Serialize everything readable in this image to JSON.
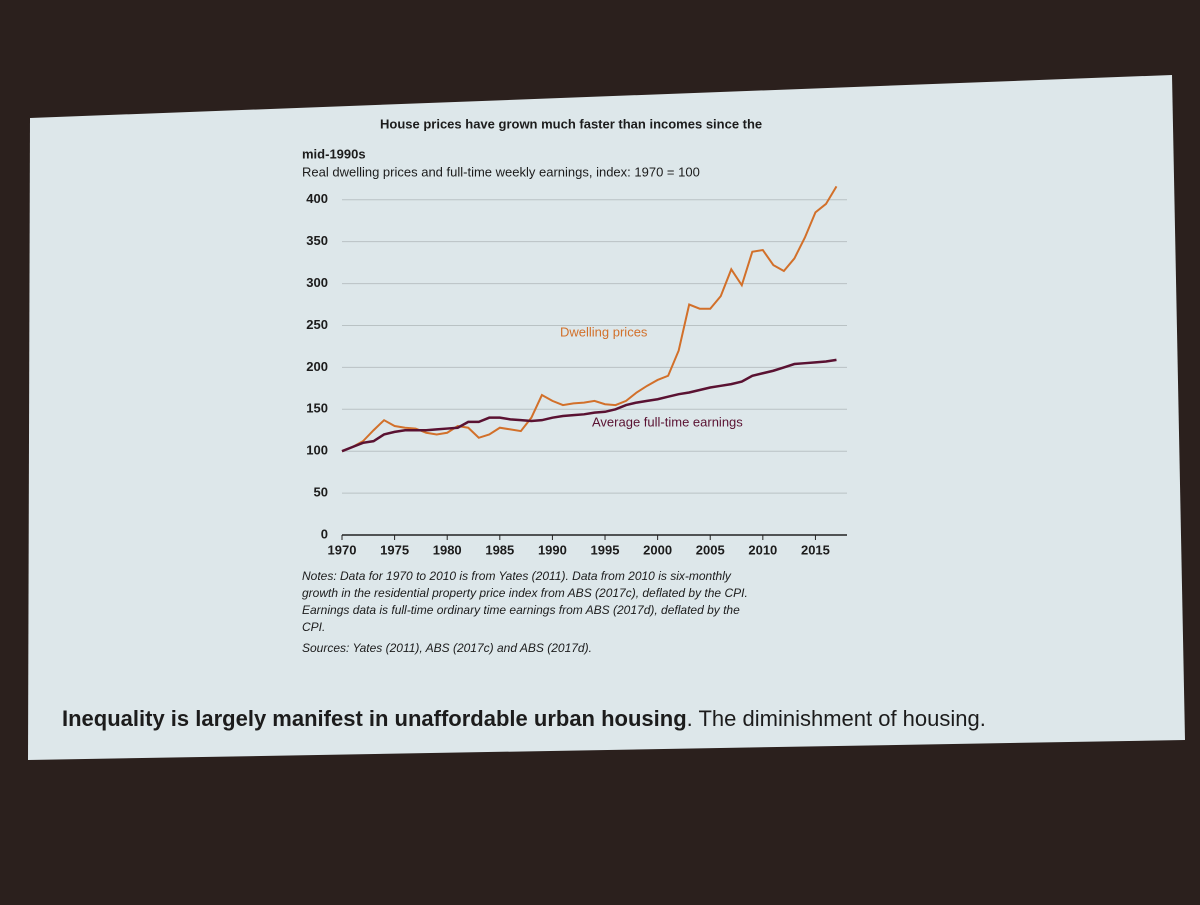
{
  "chart_data": {
    "type": "line",
    "title": [
      "House prices have grown much faster than incomes since the",
      "mid-1990s"
    ],
    "subtitle": "Real dwelling prices and full-time weekly earnings, index: 1970 = 100",
    "x": [
      1970,
      1971,
      1972,
      1973,
      1974,
      1975,
      1976,
      1977,
      1978,
      1979,
      1980,
      1981,
      1982,
      1983,
      1984,
      1985,
      1986,
      1987,
      1988,
      1989,
      1990,
      1991,
      1992,
      1993,
      1994,
      1995,
      1996,
      1997,
      1998,
      1999,
      2000,
      2001,
      2002,
      2003,
      2004,
      2005,
      2006,
      2007,
      2008,
      2009,
      2010,
      2011,
      2012,
      2013,
      2014,
      2015,
      2016,
      2017
    ],
    "series": [
      {
        "name": "Dwelling prices",
        "color": "#d2702a",
        "values": [
          100,
          105,
          112,
          125,
          137,
          130,
          128,
          127,
          122,
          120,
          122,
          130,
          128,
          116,
          120,
          128,
          126,
          124,
          140,
          167,
          160,
          155,
          157,
          158,
          160,
          156,
          155,
          160,
          170,
          178,
          185,
          190,
          220,
          275,
          270,
          270,
          285,
          317,
          298,
          338,
          340,
          322,
          315,
          330,
          355,
          385,
          395,
          416
        ]
      },
      {
        "name": "Average full-time earnings",
        "color": "#5a1232",
        "values": [
          100,
          105,
          110,
          112,
          120,
          123,
          125,
          125,
          125,
          126,
          127,
          128,
          135,
          135,
          140,
          140,
          138,
          137,
          136,
          137,
          140,
          142,
          143,
          144,
          146,
          147,
          150,
          155,
          158,
          160,
          162,
          165,
          168,
          170,
          173,
          176,
          178,
          180,
          183,
          190,
          193,
          196,
          200,
          204,
          205,
          206,
          207,
          209
        ]
      }
    ],
    "xlim": [
      1970,
      2018
    ],
    "xticks": [
      1970,
      1975,
      1980,
      1985,
      1990,
      1995,
      2000,
      2005,
      2010,
      2015
    ],
    "ylim": [
      0,
      420
    ],
    "yticks": [
      0,
      50,
      100,
      150,
      200,
      250,
      300,
      350,
      400
    ],
    "grid": true,
    "notes": [
      "Notes: Data for 1970 to 2010 is from Yates (2011). Data from 2010 is six-monthly",
      "growth in the residential property price index from ABS (2017c), deflated by the CPI.",
      "Earnings data is full-time ordinary time earnings from ABS (2017d), deflated by the",
      "CPI."
    ],
    "sources": "Sources: Yates (2011), ABS (2017c) and ABS (2017d)."
  },
  "slide": {
    "caption_bold": "Inequality is largely manifest in unaffordable urban housing",
    "caption_rest": ". The diminishment of housing."
  }
}
